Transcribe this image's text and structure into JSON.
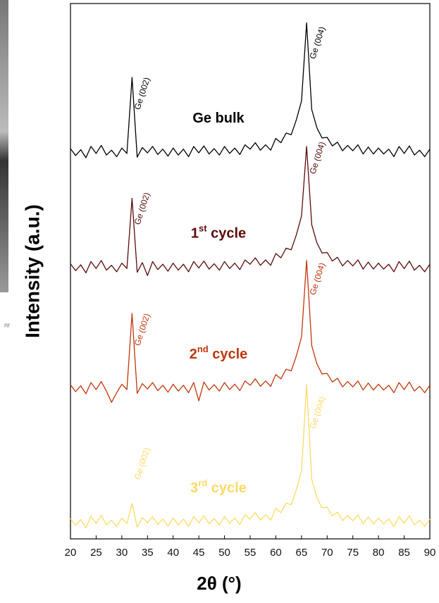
{
  "side_text": "nr",
  "chart_data": {
    "type": "line",
    "xlabel": "2θ (°)",
    "ylabel": "Intensity (a.u.)",
    "xlim": [
      20,
      90
    ],
    "xticks": [
      20,
      25,
      30,
      35,
      40,
      45,
      50,
      55,
      60,
      65,
      70,
      75,
      80,
      85,
      90
    ],
    "ylim": [
      0,
      100
    ],
    "x": [
      20,
      21,
      22,
      23,
      24,
      25,
      26,
      27,
      28,
      29,
      30,
      31,
      32,
      33,
      34,
      35,
      36,
      37,
      38,
      39,
      40,
      41,
      42,
      43,
      44,
      45,
      46,
      47,
      48,
      49,
      50,
      51,
      52,
      53,
      54,
      55,
      56,
      57,
      58,
      59,
      60,
      61,
      62,
      63,
      64,
      65,
      66,
      67,
      68,
      69,
      70,
      71,
      72,
      73,
      74,
      75,
      76,
      77,
      78,
      79,
      80,
      81,
      82,
      83,
      84,
      85,
      86,
      87,
      88,
      89,
      90
    ],
    "series": [
      {
        "name": "Ge bulk",
        "color": "#000000",
        "peak_labels": [
          "Ge (002)",
          "Ge (004)"
        ],
        "values": [
          72.9,
          71.6,
          72.7,
          71.2,
          73.3,
          72.0,
          73.5,
          71.7,
          72.6,
          71.4,
          73.0,
          72.0,
          86.2,
          71.3,
          73.1,
          72.1,
          73.3,
          71.8,
          72.8,
          71.5,
          73.0,
          71.7,
          72.8,
          71.4,
          73.3,
          72.1,
          73.4,
          71.9,
          72.9,
          71.7,
          73.3,
          72.0,
          73.0,
          71.8,
          73.6,
          72.8,
          74.0,
          72.6,
          73.6,
          72.6,
          74.8,
          74.0,
          75.8,
          75.5,
          78.3,
          81.8,
          96.4,
          80.2,
          76.8,
          74.9,
          75.0,
          73.4,
          74.1,
          72.5,
          73.5,
          72.5,
          73.6,
          71.9,
          73.2,
          71.9,
          73.0,
          71.9,
          72.8,
          71.4,
          73.3,
          72.0,
          73.4,
          71.7,
          72.6,
          71.4,
          72.8
        ]
      },
      {
        "name": "1st cycle",
        "color": "#5c0a0a",
        "peak_labels": [
          "Ge (002)",
          "Ge (004)"
        ],
        "values": [
          51.4,
          50.1,
          51.2,
          49.7,
          51.8,
          50.5,
          52.0,
          50.2,
          51.1,
          49.9,
          51.5,
          50.5,
          63.6,
          49.8,
          51.6,
          49.2,
          51.8,
          50.3,
          51.3,
          50.0,
          51.5,
          50.2,
          51.3,
          49.9,
          51.8,
          50.6,
          51.9,
          50.4,
          51.4,
          50.2,
          51.8,
          50.5,
          51.5,
          50.3,
          52.1,
          51.3,
          52.5,
          51.1,
          52.1,
          51.1,
          53.3,
          52.5,
          54.3,
          54.0,
          56.8,
          60.3,
          73.3,
          58.7,
          55.3,
          53.4,
          53.5,
          51.9,
          52.6,
          51.0,
          52.0,
          51.0,
          52.1,
          50.4,
          51.7,
          50.4,
          51.5,
          50.4,
          51.3,
          49.9,
          51.8,
          50.5,
          51.9,
          50.2,
          51.1,
          49.9,
          51.3
        ]
      },
      {
        "name": "2nd cycle",
        "color": "#c0360c",
        "peak_labels": [
          "Ge (002)",
          "Ge (004)"
        ],
        "values": [
          28.8,
          27.5,
          28.6,
          27.1,
          29.2,
          27.9,
          29.4,
          27.6,
          25.5,
          27.3,
          28.9,
          27.9,
          42.1,
          27.2,
          29.0,
          28.0,
          29.2,
          27.7,
          28.7,
          27.4,
          28.9,
          27.6,
          28.7,
          27.3,
          29.2,
          25.8,
          29.3,
          27.8,
          28.8,
          27.6,
          29.2,
          27.9,
          28.9,
          27.7,
          29.5,
          28.7,
          29.9,
          28.5,
          29.5,
          28.5,
          30.7,
          29.9,
          31.7,
          31.4,
          34.2,
          37.7,
          52.0,
          36.1,
          32.7,
          30.8,
          30.9,
          29.3,
          30.0,
          28.4,
          29.4,
          28.4,
          29.5,
          27.8,
          29.1,
          27.8,
          28.9,
          27.8,
          28.7,
          27.3,
          29.2,
          27.9,
          29.3,
          27.6,
          28.5,
          27.3,
          28.7
        ]
      },
      {
        "name": "3rd cycle",
        "color": "#ffd966",
        "peak_labels": [
          "Ge (002)",
          "Ge (004)"
        ],
        "values": [
          3.8,
          2.5,
          3.6,
          2.1,
          4.2,
          2.9,
          4.4,
          2.6,
          3.5,
          2.3,
          3.9,
          2.9,
          6.6,
          2.2,
          4.0,
          3.0,
          4.2,
          2.7,
          3.7,
          2.4,
          3.9,
          2.6,
          3.7,
          2.3,
          4.2,
          3.0,
          4.3,
          2.8,
          3.8,
          2.6,
          4.2,
          2.9,
          3.9,
          2.7,
          4.5,
          3.7,
          4.9,
          3.5,
          4.5,
          3.5,
          5.7,
          4.9,
          6.7,
          6.4,
          9.2,
          12.7,
          28.8,
          11.1,
          7.7,
          5.8,
          5.9,
          4.3,
          5.0,
          3.4,
          4.4,
          3.4,
          4.5,
          2.8,
          4.1,
          2.8,
          3.9,
          2.8,
          3.7,
          2.3,
          4.2,
          2.9,
          4.3,
          2.6,
          3.5,
          2.3,
          3.7
        ]
      }
    ]
  }
}
